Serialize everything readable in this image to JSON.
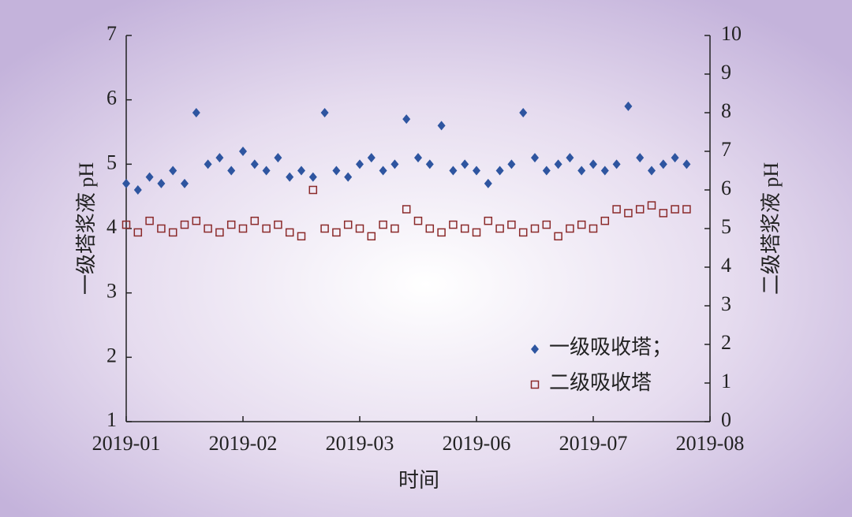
{
  "chart_data": {
    "type": "scatter",
    "x_label": "时间",
    "y_label": "一级塔浆液 pH",
    "y2_label": "二级塔浆液 pH",
    "xlim": [
      0,
      5
    ],
    "xticks": [
      {
        "value": 0,
        "label": "2019-01"
      },
      {
        "value": 1,
        "label": "2019-02"
      },
      {
        "value": 2,
        "label": "2019-03"
      },
      {
        "value": 3,
        "label": "2019-06"
      },
      {
        "value": 4,
        "label": "2019-07"
      },
      {
        "value": 5,
        "label": "2019-08"
      }
    ],
    "ylim": [
      1,
      7
    ],
    "yticks": [
      1,
      2,
      3,
      4,
      5,
      6,
      7
    ],
    "y2lim": [
      0,
      10
    ],
    "y2ticks": [
      0,
      1,
      2,
      3,
      4,
      5,
      6,
      7,
      8,
      9,
      10
    ],
    "legend": "lower right",
    "x": [
      0,
      0.1,
      0.2,
      0.3,
      0.4,
      0.5,
      0.6,
      0.7,
      0.8,
      0.9,
      1.0,
      1.1,
      1.2,
      1.3,
      1.4,
      1.5,
      1.6,
      1.7,
      1.8,
      1.9,
      2.0,
      2.1,
      2.2,
      2.3,
      2.4,
      2.5,
      2.6,
      2.7,
      2.8,
      2.9,
      3.0,
      3.1,
      3.2,
      3.3,
      3.4,
      3.5,
      3.6,
      3.7,
      3.8,
      3.9,
      4.0,
      4.1,
      4.2,
      4.3,
      4.4,
      4.5,
      4.6,
      4.7,
      4.8
    ],
    "series": [
      {
        "name": "一级吸收塔；",
        "color": "#2e55a0",
        "marker": "diamond",
        "values": [
          4.7,
          4.6,
          4.8,
          4.7,
          4.9,
          4.7,
          5.8,
          5.0,
          5.1,
          4.9,
          5.2,
          5.0,
          4.9,
          5.1,
          4.8,
          4.9,
          4.8,
          5.8,
          4.9,
          4.8,
          5.0,
          5.1,
          4.9,
          5.0,
          5.7,
          5.1,
          5.0,
          5.6,
          4.9,
          5.0,
          4.9,
          4.7,
          4.9,
          5.0,
          5.8,
          5.1,
          4.9,
          5.0,
          5.1,
          4.9,
          5.0,
          4.9,
          5.0,
          5.9,
          5.1,
          4.9,
          5.0,
          5.1,
          5.0
        ]
      },
      {
        "name": "二级吸收塔",
        "color": "#8b2a2a",
        "marker": "square",
        "axis": "y2",
        "values": [
          5.1,
          4.9,
          5.2,
          5.0,
          4.9,
          5.1,
          5.2,
          5.0,
          4.9,
          5.1,
          5.0,
          5.2,
          5.0,
          5.1,
          4.9,
          4.8,
          6.0,
          5.0,
          4.9,
          5.1,
          5.0,
          4.8,
          5.1,
          5.0,
          5.5,
          5.2,
          5.0,
          4.9,
          5.1,
          5.0,
          4.9,
          5.2,
          5.0,
          5.1,
          4.9,
          5.0,
          5.1,
          4.8,
          5.0,
          5.1,
          5.0,
          5.2,
          5.5,
          5.4,
          5.5,
          5.6,
          5.4,
          5.5,
          5.5
        ]
      }
    ]
  }
}
